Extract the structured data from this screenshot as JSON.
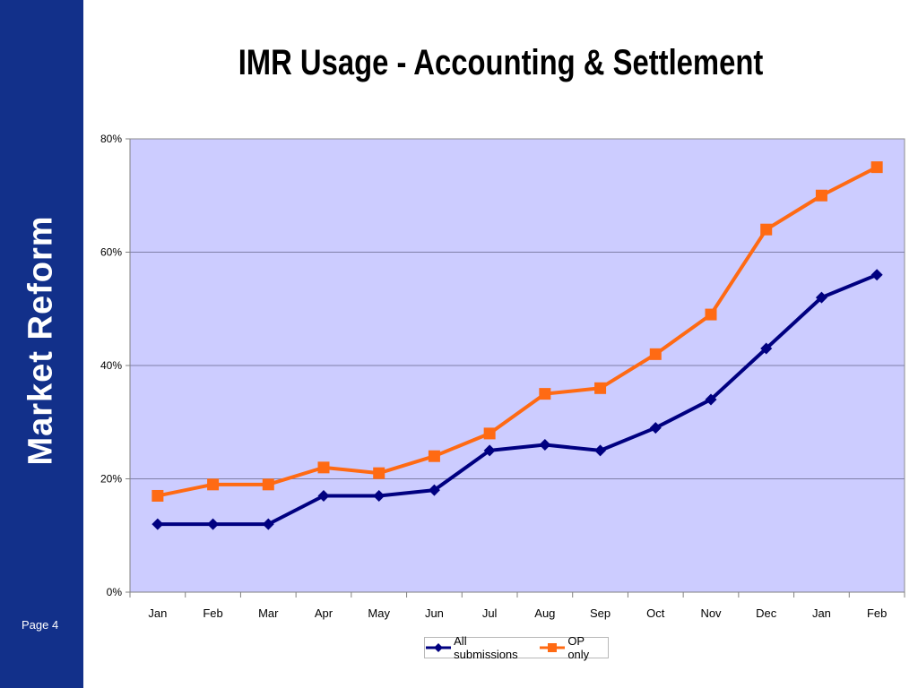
{
  "sidebar": {
    "brand": "Market Reform",
    "page": "Page 4"
  },
  "title": "IMR Usage - Accounting & Settlement",
  "colors": {
    "sidebar": "#12308a",
    "plot_bg": "#ccccff",
    "series1": "#000080",
    "series2": "#ff6a13"
  },
  "chart_data": {
    "type": "line",
    "categories": [
      "Jan",
      "Feb",
      "Mar",
      "Apr",
      "May",
      "Jun",
      "Jul",
      "Aug",
      "Sep",
      "Oct",
      "Nov",
      "Dec",
      "Jan",
      "Feb"
    ],
    "series": [
      {
        "name": "All submissions",
        "marker": "diamond",
        "color": "#000080",
        "values": [
          12,
          12,
          12,
          17,
          17,
          18,
          25,
          26,
          25,
          29,
          34,
          43,
          52,
          56
        ]
      },
      {
        "name": "OP only",
        "marker": "square",
        "color": "#ff6a13",
        "values": [
          17,
          19,
          19,
          22,
          21,
          24,
          28,
          35,
          36,
          42,
          49,
          64,
          70,
          75
        ]
      }
    ],
    "ylim": [
      0,
      80
    ],
    "yticks": [
      0,
      20,
      40,
      60,
      80
    ],
    "ytick_labels": [
      "0%",
      "20%",
      "40%",
      "60%",
      "80%"
    ],
    "grid": true,
    "legend": "bottom"
  }
}
